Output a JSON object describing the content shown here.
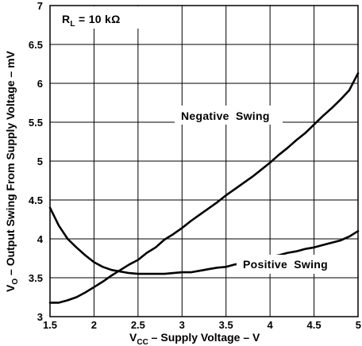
{
  "chart_data": {
    "type": "line",
    "xlim": [
      1.5,
      5
    ],
    "ylim": [
      3,
      7
    ],
    "x_ticks": [
      "1.5",
      "2",
      "2.5",
      "3",
      "3.5",
      "4",
      "4.5",
      "5"
    ],
    "y_ticks": [
      "3",
      "3.5",
      "4",
      "4.5",
      "5",
      "5.5",
      "6",
      "6.5",
      "7"
    ],
    "grid": true,
    "xlabel": {
      "main": "V",
      "sub": "CC",
      "rest": " – Supply Voltage – V"
    },
    "ylabel": {
      "main": "V",
      "sub": "O",
      "rest": " – Output Swing From Supply Voltage – mV"
    },
    "condition": {
      "main": "R",
      "sub": "L",
      "rest": " = 10 kΩ"
    },
    "series": [
      {
        "name": "Negative Swing",
        "x": [
          1.5,
          1.6,
          1.7,
          1.8,
          1.9,
          2.0,
          2.1,
          2.2,
          2.3,
          2.4,
          2.5,
          2.6,
          2.7,
          2.8,
          2.9,
          3.0,
          3.1,
          3.2,
          3.3,
          3.4,
          3.5,
          3.6,
          3.7,
          3.8,
          3.9,
          4.0,
          4.1,
          4.2,
          4.3,
          4.4,
          4.5,
          4.6,
          4.7,
          4.8,
          4.9,
          5.0
        ],
        "values": [
          3.18,
          3.18,
          3.21,
          3.25,
          3.31,
          3.38,
          3.45,
          3.53,
          3.6,
          3.67,
          3.73,
          3.82,
          3.89,
          3.99,
          4.06,
          4.14,
          4.23,
          4.31,
          4.39,
          4.47,
          4.56,
          4.64,
          4.72,
          4.8,
          4.89,
          4.98,
          5.08,
          5.17,
          5.27,
          5.36,
          5.47,
          5.58,
          5.68,
          5.79,
          5.91,
          6.13
        ]
      },
      {
        "name": "Positive Swing",
        "x": [
          1.5,
          1.6,
          1.7,
          1.8,
          1.9,
          2.0,
          2.1,
          2.2,
          2.3,
          2.4,
          2.5,
          2.6,
          2.7,
          2.8,
          2.9,
          3.0,
          3.1,
          3.2,
          3.3,
          3.4,
          3.5,
          3.6,
          3.7,
          3.8,
          3.9,
          4.0,
          4.1,
          4.2,
          4.3,
          4.4,
          4.5,
          4.6,
          4.7,
          4.8,
          4.9,
          5.0
        ],
        "values": [
          4.4,
          4.17,
          4.0,
          3.89,
          3.79,
          3.7,
          3.64,
          3.6,
          3.58,
          3.56,
          3.55,
          3.55,
          3.55,
          3.55,
          3.56,
          3.57,
          3.57,
          3.59,
          3.61,
          3.63,
          3.64,
          3.67,
          3.69,
          3.72,
          3.74,
          3.77,
          3.79,
          3.82,
          3.84,
          3.87,
          3.89,
          3.92,
          3.95,
          3.98,
          4.03,
          4.1
        ]
      }
    ],
    "annotations": [
      "Negative Swing",
      "Positive Swing"
    ]
  }
}
